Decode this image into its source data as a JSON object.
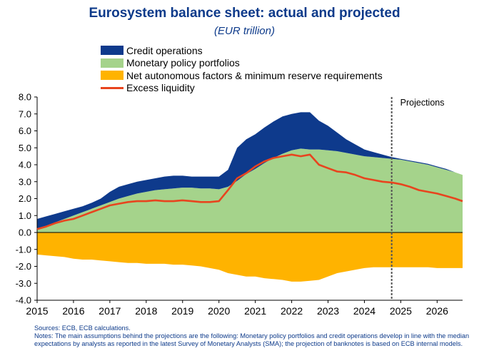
{
  "chart_data": {
    "type": "area",
    "title": "Eurosystem balance sheet: actual and projected",
    "subtitle": "(EUR trillion)",
    "xlabel": "",
    "ylabel": "",
    "ylim": [
      -4.0,
      8.0
    ],
    "yticks": [
      "8.0",
      "7.0",
      "6.0",
      "5.0",
      "4.0",
      "3.0",
      "2.0",
      "1.0",
      "0.0",
      "-1.0",
      "-2.0",
      "-3.0",
      "-4.0"
    ],
    "xticks": [
      "2015",
      "2016",
      "2017",
      "2018",
      "2019",
      "2020",
      "2021",
      "2022",
      "2023",
      "2024",
      "2025",
      "2026"
    ],
    "projection_start": 2024.75,
    "projection_label": "Projections",
    "legend_position": "top",
    "colors": {
      "credit": "#0e3a8c",
      "mpp": "#a5d38b",
      "naf": "#ffb300",
      "excess": "#e8441e"
    },
    "x": [
      2015.0,
      2015.25,
      2015.5,
      2015.75,
      2016.0,
      2016.25,
      2016.5,
      2016.75,
      2017.0,
      2017.25,
      2017.5,
      2017.75,
      2018.0,
      2018.25,
      2018.5,
      2018.75,
      2019.0,
      2019.25,
      2019.5,
      2019.75,
      2020.0,
      2020.25,
      2020.5,
      2020.75,
      2021.0,
      2021.25,
      2021.5,
      2021.75,
      2022.0,
      2022.25,
      2022.5,
      2022.75,
      2023.0,
      2023.25,
      2023.5,
      2023.75,
      2024.0,
      2024.25,
      2024.5,
      2024.75,
      2025.0,
      2025.25,
      2025.5,
      2025.75,
      2026.0,
      2026.25,
      2026.5,
      2026.7
    ],
    "series": [
      {
        "name": "Credit operations",
        "top": [
          0.8,
          0.95,
          1.1,
          1.25,
          1.4,
          1.55,
          1.75,
          2.0,
          2.4,
          2.7,
          2.85,
          3.0,
          3.1,
          3.2,
          3.3,
          3.35,
          3.35,
          3.3,
          3.3,
          3.3,
          3.3,
          3.7,
          5.0,
          5.5,
          5.8,
          6.2,
          6.55,
          6.85,
          7.0,
          7.1,
          7.1,
          6.6,
          6.3,
          5.9,
          5.5,
          5.2,
          4.9,
          4.75,
          4.6,
          4.45,
          4.35,
          4.25,
          4.15,
          4.05,
          3.9,
          3.75,
          3.55,
          3.4
        ]
      },
      {
        "name": "Monetary policy portfolios",
        "top": [
          0.25,
          0.4,
          0.6,
          0.8,
          1.0,
          1.2,
          1.4,
          1.6,
          1.8,
          2.0,
          2.15,
          2.3,
          2.4,
          2.5,
          2.55,
          2.6,
          2.65,
          2.65,
          2.6,
          2.6,
          2.55,
          2.7,
          3.05,
          3.45,
          3.75,
          4.1,
          4.4,
          4.65,
          4.85,
          4.95,
          4.9,
          4.9,
          4.85,
          4.8,
          4.7,
          4.6,
          4.5,
          4.45,
          4.4,
          4.35,
          4.3,
          4.2,
          4.1,
          4.0,
          3.85,
          3.7,
          3.55,
          3.4
        ]
      },
      {
        "name": "Net autonomous factors & minimum reserve requirements",
        "bottom": [
          -1.3,
          -1.35,
          -1.4,
          -1.45,
          -1.55,
          -1.6,
          -1.6,
          -1.65,
          -1.7,
          -1.75,
          -1.8,
          -1.8,
          -1.85,
          -1.85,
          -1.85,
          -1.9,
          -1.9,
          -1.95,
          -2.0,
          -2.1,
          -2.2,
          -2.4,
          -2.5,
          -2.6,
          -2.6,
          -2.7,
          -2.75,
          -2.8,
          -2.9,
          -2.9,
          -2.85,
          -2.8,
          -2.6,
          -2.4,
          -2.3,
          -2.2,
          -2.1,
          -2.05,
          -2.05,
          -2.05,
          -2.05,
          -2.05,
          -2.05,
          -2.05,
          -2.1,
          -2.1,
          -2.1,
          -2.1
        ]
      },
      {
        "name": "Excess liquidity",
        "values": [
          0.2,
          0.35,
          0.55,
          0.7,
          0.8,
          1.0,
          1.2,
          1.4,
          1.6,
          1.7,
          1.8,
          1.85,
          1.85,
          1.9,
          1.85,
          1.85,
          1.9,
          1.85,
          1.8,
          1.8,
          1.85,
          2.5,
          3.2,
          3.5,
          3.9,
          4.2,
          4.4,
          4.5,
          4.6,
          4.5,
          4.6,
          4.0,
          3.8,
          3.6,
          3.55,
          3.4,
          3.2,
          3.1,
          3.0,
          2.95,
          2.85,
          2.7,
          2.5,
          2.4,
          2.3,
          2.15,
          2.0,
          1.85
        ]
      }
    ]
  },
  "footnote": {
    "sources": "Sources: ECB, ECB calculations.",
    "notes": "Notes: The main assumptions behind the projections are the following: Monetary policy portfolios and credit operations develop in line with the median expectations by analysts as reported in the latest Survey of Monetary Analysts (SMA); the projection of banknotes is based on ECB internal models."
  }
}
